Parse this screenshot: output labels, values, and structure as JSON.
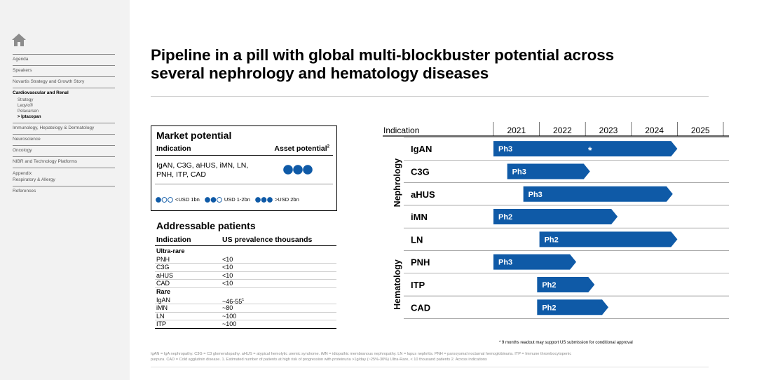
{
  "sidebar": {
    "home_icon": "home-icon",
    "items": [
      {
        "label": "Agenda"
      },
      {
        "label": "Speakers"
      },
      {
        "label": "Novartis Strategy and Growth Story"
      },
      {
        "label": "Cardiovascular and Renal",
        "active": true,
        "children": [
          "Strategy",
          "Leqvio®",
          "Pelacarsen",
          "> Iptacopan"
        ]
      },
      {
        "label": "Immunology, Hepatology & Dermatology"
      },
      {
        "label": "Neuroscience"
      },
      {
        "label": "Oncology"
      },
      {
        "label": "NIBR and Technology Platforms"
      },
      {
        "label": "Appendix",
        "label2": "Respiratory & Allergy"
      },
      {
        "label": "References"
      }
    ]
  },
  "title": {
    "line1": "Pipeline in a pill with global multi-blockbuster potential across",
    "line2": "several nephrology and hematology diseases"
  },
  "market": {
    "title": "Market potential",
    "col_indication": "Indication",
    "col_asset": "Asset potential",
    "col_asset_sup": "2",
    "indications": "IgAN, C3G, aHUS, iMN, LN, PNH, ITP, CAD",
    "asset_level": 3,
    "legend": [
      {
        "filled": 1,
        "label": "<USD 1bn"
      },
      {
        "filled": 2,
        "label": "USD 1-2bn"
      },
      {
        "filled": 3,
        "label": ">USD 2bn"
      }
    ],
    "accent": "#0f5aa7"
  },
  "addressable": {
    "title": "Addressable patients",
    "col_indication": "Indication",
    "col_prev": "US prevalence thousands",
    "rows": [
      {
        "type": "cat",
        "name": "Ultra-rare"
      },
      {
        "name": "PNH",
        "value": "<10"
      },
      {
        "name": "C3G",
        "value": "<10"
      },
      {
        "name": "aHUS",
        "value": "<10"
      },
      {
        "name": "CAD",
        "value": "<10"
      },
      {
        "type": "cat",
        "name": "Rare"
      },
      {
        "name": "IgAN",
        "value": "~46-55",
        "sup": "1"
      },
      {
        "name": "iMN",
        "value": "~80"
      },
      {
        "name": "LN",
        "value": "~100"
      },
      {
        "name": "ITP",
        "value": "~100"
      }
    ]
  },
  "gantt": {
    "header_label": "Indication",
    "years": [
      "2021",
      "2022",
      "2023",
      "2024",
      "2025"
    ],
    "year_start": 2021,
    "year_end": 2026,
    "groups": [
      {
        "name": "Nephrology",
        "rows": [
          0,
          1,
          2,
          3
        ]
      },
      {
        "name": "Hematology",
        "rows": [
          5,
          6,
          7
        ]
      }
    ],
    "bar_color": "#0f5aa7",
    "rows": [
      {
        "name": "IgAN",
        "phase": "Ph3",
        "start": 2021.0,
        "end": 2025.0,
        "star": "*",
        "star_at": 2023.1
      },
      {
        "name": "C3G",
        "phase": "Ph3",
        "start": 2021.3,
        "end": 2023.1
      },
      {
        "name": "aHUS",
        "phase": "Ph3",
        "start": 2021.65,
        "end": 2024.9
      },
      {
        "name": "iMN",
        "phase": "Ph2",
        "start": 2021.0,
        "end": 2023.7
      },
      {
        "name": "LN",
        "phase": "Ph2",
        "start": 2022.0,
        "end": 2025.0
      },
      {
        "name": "PNH",
        "phase": "Ph3",
        "start": 2021.0,
        "end": 2022.8
      },
      {
        "name": "ITP",
        "phase": "Ph2",
        "start": 2021.95,
        "end": 2023.2
      },
      {
        "name": "CAD",
        "phase": "Ph2",
        "start": 2021.95,
        "end": 2023.5
      }
    ],
    "footnote": "* 9 months readout may support US submission for conditional approval"
  },
  "abbreviations": {
    "line1": "IgAN = IgA nephropathy.    C3G = C3 glomerulopathy.    aHUS = atypical hemolytic uremic syndrome.    iMN = idiopathic membranous nephropathy.    LN = lupus nephritis.    PNH = paroxysmal nocturnal hemoglobinuria.    ITP = Immune thrombocytopenic",
    "line2": "purpura.    CAD = Cold agglutinin disease.    1. Estimated number of patients at high risk of progression with proteinuria >1g/day (~25%-30%)    Ultra-Rare, < 10 thousand patients    2. Across indications"
  }
}
